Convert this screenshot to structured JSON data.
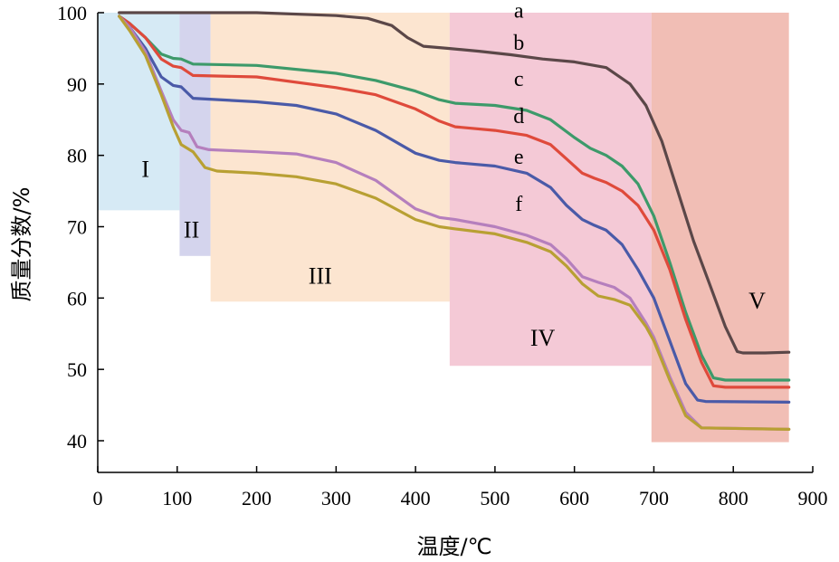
{
  "chart_data": {
    "type": "line",
    "xlabel": "温度/℃",
    "ylabel": "质量分数/%",
    "xlim": [
      0,
      900
    ],
    "ylim": [
      37,
      100
    ],
    "xticks": [
      0,
      100,
      200,
      300,
      400,
      500,
      600,
      700,
      800,
      900
    ],
    "yticks": [
      40,
      50,
      60,
      70,
      80,
      90,
      100
    ],
    "grid": false,
    "regions": [
      {
        "label": "I",
        "x": [
          0,
          103
        ],
        "y_bottom": 72.3,
        "color": "#cfe6f3",
        "label_at": [
          60,
          77
        ]
      },
      {
        "label": "II",
        "x": [
          103,
          142
        ],
        "y_bottom": 65.9,
        "color": "#cdcdea",
        "label_at": [
          118,
          68.5
        ]
      },
      {
        "label": "III",
        "x": [
          142,
          443
        ],
        "y_bottom": 59.5,
        "color": "#fbe0c8",
        "label_at": [
          280,
          62
        ]
      },
      {
        "label": "IV",
        "x": [
          443,
          697
        ],
        "y_bottom": 50.5,
        "color": "#f2bfcf",
        "label_at": [
          560,
          53.3
        ]
      },
      {
        "label": "V",
        "x": [
          697,
          870
        ],
        "y_bottom": 39.8,
        "color": "#efb3a8",
        "label_at": [
          830,
          58.5
        ]
      }
    ],
    "series": [
      {
        "name": "a",
        "color": "#5b4748",
        "label_at": [
          530,
          99.3
        ],
        "x": [
          27,
          40,
          60,
          100,
          200,
          300,
          340,
          370,
          390,
          410,
          440,
          480,
          520,
          560,
          600,
          640,
          670,
          690,
          710,
          730,
          750,
          770,
          790,
          805,
          812,
          840,
          870
        ],
        "y": [
          100,
          100,
          100,
          100,
          100,
          99.6,
          99.2,
          98.2,
          96.5,
          95.3,
          95.0,
          94.6,
          94.1,
          93.5,
          93.1,
          92.3,
          90.0,
          87.0,
          82.0,
          75.0,
          68.0,
          62.0,
          56.0,
          52.5,
          52.3,
          52.3,
          52.4
        ]
      },
      {
        "name": "b",
        "color": "#3d9a6a",
        "label_at": [
          530,
          94.8
        ],
        "x": [
          27,
          40,
          60,
          80,
          95,
          105,
          120,
          200,
          300,
          350,
          400,
          430,
          450,
          500,
          540,
          570,
          600,
          620,
          640,
          660,
          680,
          700,
          720,
          740,
          760,
          775,
          790,
          870
        ],
        "y": [
          99.5,
          98.5,
          96.5,
          94.2,
          93.6,
          93.5,
          92.8,
          92.6,
          91.5,
          90.5,
          89.0,
          87.8,
          87.3,
          87.0,
          86.3,
          85.0,
          82.5,
          81.0,
          80.0,
          78.5,
          76.0,
          71.5,
          65.0,
          58.0,
          52.0,
          48.8,
          48.5,
          48.5
        ]
      },
      {
        "name": "c",
        "color": "#df4a3b",
        "label_at": [
          530,
          89.7
        ],
        "x": [
          27,
          40,
          60,
          80,
          95,
          105,
          120,
          200,
          300,
          350,
          400,
          430,
          450,
          500,
          540,
          570,
          590,
          610,
          625,
          640,
          660,
          680,
          700,
          720,
          740,
          760,
          775,
          790,
          870
        ],
        "y": [
          99.5,
          98.5,
          96.5,
          93.5,
          92.5,
          92.3,
          91.2,
          91.0,
          89.5,
          88.5,
          86.5,
          84.8,
          84.0,
          83.5,
          82.8,
          81.5,
          79.5,
          77.5,
          76.8,
          76.2,
          75.0,
          73.0,
          69.5,
          64.0,
          57.0,
          51.0,
          47.7,
          47.5,
          47.5
        ]
      },
      {
        "name": "d",
        "color": "#4a5aa8",
        "label_at": [
          530,
          84.5
        ],
        "x": [
          27,
          40,
          60,
          80,
          95,
          105,
          120,
          200,
          250,
          300,
          350,
          400,
          430,
          450,
          500,
          540,
          570,
          590,
          610,
          625,
          640,
          660,
          680,
          700,
          720,
          740,
          755,
          765,
          870
        ],
        "y": [
          99.5,
          98.0,
          95.0,
          91.0,
          89.8,
          89.6,
          88.0,
          87.5,
          87.0,
          85.8,
          83.5,
          80.3,
          79.3,
          79.0,
          78.5,
          77.5,
          75.5,
          73.0,
          71.0,
          70.2,
          69.5,
          67.5,
          64.0,
          60.0,
          54.0,
          48.0,
          45.7,
          45.5,
          45.4
        ]
      },
      {
        "name": "e",
        "color": "#b57fbd",
        "label_at": [
          530,
          78.8
        ],
        "x": [
          27,
          40,
          60,
          80,
          95,
          105,
          115,
          125,
          140,
          200,
          250,
          300,
          350,
          400,
          430,
          450,
          500,
          540,
          570,
          590,
          610,
          630,
          650,
          670,
          690,
          700,
          720,
          740,
          760,
          870
        ],
        "y": [
          99.5,
          98.0,
          94.5,
          89.0,
          85.0,
          83.5,
          83.2,
          81.2,
          80.8,
          80.5,
          80.2,
          79.0,
          76.5,
          72.5,
          71.3,
          71.0,
          70.0,
          68.8,
          67.5,
          65.5,
          63.0,
          62.2,
          61.5,
          60.0,
          56.5,
          54.5,
          49.0,
          44.0,
          41.8,
          41.6
        ]
      },
      {
        "name": "f",
        "color": "#b8a033",
        "label_at": [
          530,
          72.2
        ],
        "x": [
          27,
          40,
          60,
          80,
          95,
          105,
          120,
          135,
          150,
          200,
          250,
          300,
          350,
          400,
          430,
          450,
          500,
          540,
          570,
          590,
          610,
          630,
          650,
          670,
          690,
          700,
          720,
          740,
          760,
          870
        ],
        "y": [
          99.5,
          97.5,
          94.0,
          88.5,
          84.0,
          81.5,
          80.5,
          78.3,
          77.8,
          77.5,
          77.0,
          76.0,
          74.0,
          71.0,
          70.0,
          69.7,
          69.0,
          67.8,
          66.5,
          64.5,
          62.0,
          60.3,
          59.8,
          59.0,
          56.0,
          54.0,
          48.5,
          43.5,
          41.8,
          41.6
        ]
      }
    ]
  }
}
